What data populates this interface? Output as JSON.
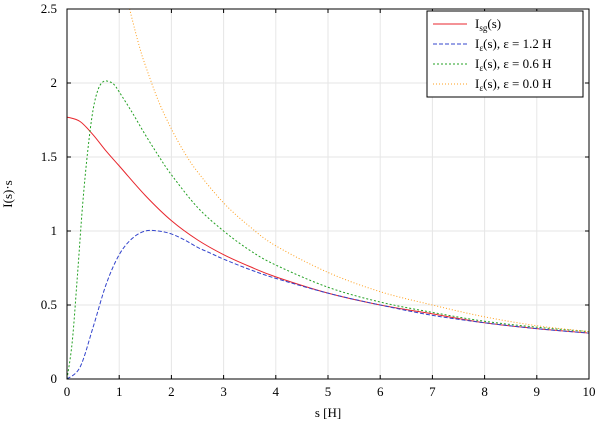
{
  "chart_data": {
    "type": "line",
    "xlabel": "s [H]",
    "ylabel": "I(s)·s",
    "xlim": [
      0,
      10
    ],
    "ylim": [
      0,
      2.5
    ],
    "xticks": [
      "0",
      "1",
      "2",
      "3",
      "4",
      "5",
      "6",
      "7",
      "8",
      "9",
      "10"
    ],
    "yticks": [
      "0",
      "0.5",
      "1",
      "1.5",
      "2",
      "2.5"
    ],
    "grid": true,
    "legend_position": "top-right",
    "series": [
      {
        "name": "I_sg(s)",
        "legend": {
          "main": "I",
          "sub": "sg",
          "rest": "(s)"
        },
        "color": "#e8262d",
        "dash": "solid",
        "x": [
          0,
          0.25,
          0.5,
          0.75,
          1,
          1.5,
          2,
          2.5,
          3,
          3.5,
          4,
          5,
          6,
          7,
          8,
          9,
          10
        ],
        "y": [
          1.77,
          1.74,
          1.65,
          1.54,
          1.44,
          1.24,
          1.07,
          0.94,
          0.84,
          0.76,
          0.69,
          0.58,
          0.5,
          0.44,
          0.38,
          0.34,
          0.31
        ]
      },
      {
        "name": "I_ε(s), ε = 1.2 H",
        "legend": {
          "main": "I",
          "sub": "ε",
          "rest": "(s), ε = 1.2 H"
        },
        "color": "#3344cc",
        "dash": "4,2",
        "x": [
          0,
          0.25,
          0.5,
          0.75,
          1,
          1.25,
          1.5,
          1.75,
          2,
          2.25,
          2.5,
          2.75,
          3,
          3.5,
          4,
          5,
          6,
          7,
          8,
          9,
          10
        ],
        "y": [
          0,
          0.08,
          0.35,
          0.64,
          0.84,
          0.95,
          1.0,
          1.0,
          0.98,
          0.94,
          0.89,
          0.85,
          0.81,
          0.74,
          0.68,
          0.58,
          0.5,
          0.43,
          0.38,
          0.34,
          0.31
        ]
      },
      {
        "name": "I_ε(s), ε = 0.6 H",
        "legend": {
          "main": "I",
          "sub": "ε",
          "rest": "(s), ε = 0.6 H"
        },
        "color": "#23a023",
        "dash": "2,2",
        "x": [
          0,
          0.1,
          0.2,
          0.3,
          0.4,
          0.5,
          0.6,
          0.7,
          0.8,
          0.9,
          1,
          1.25,
          1.5,
          1.75,
          2,
          2.5,
          3,
          3.5,
          4,
          5,
          6,
          7,
          8,
          9,
          10
        ],
        "y": [
          0,
          0.25,
          0.7,
          1.18,
          1.55,
          1.82,
          1.96,
          2.01,
          2.01,
          1.99,
          1.94,
          1.8,
          1.65,
          1.51,
          1.38,
          1.16,
          1.0,
          0.87,
          0.77,
          0.62,
          0.52,
          0.45,
          0.39,
          0.35,
          0.32
        ]
      },
      {
        "name": "I_ε(s), ε = 0.0 H",
        "legend": {
          "main": "I",
          "sub": "ε",
          "rest": "(s), ε = 0.0 H"
        },
        "color": "#ff9f1c",
        "dash": "1,2",
        "x": [
          1.2,
          1.3,
          1.4,
          1.5,
          1.75,
          2,
          2.25,
          2.5,
          3,
          3.5,
          4,
          5,
          6,
          7,
          8,
          9,
          10
        ],
        "y": [
          2.5,
          2.36,
          2.23,
          2.12,
          1.88,
          1.69,
          1.53,
          1.4,
          1.19,
          1.03,
          0.9,
          0.72,
          0.59,
          0.5,
          0.42,
          0.36,
          0.32
        ]
      }
    ]
  }
}
